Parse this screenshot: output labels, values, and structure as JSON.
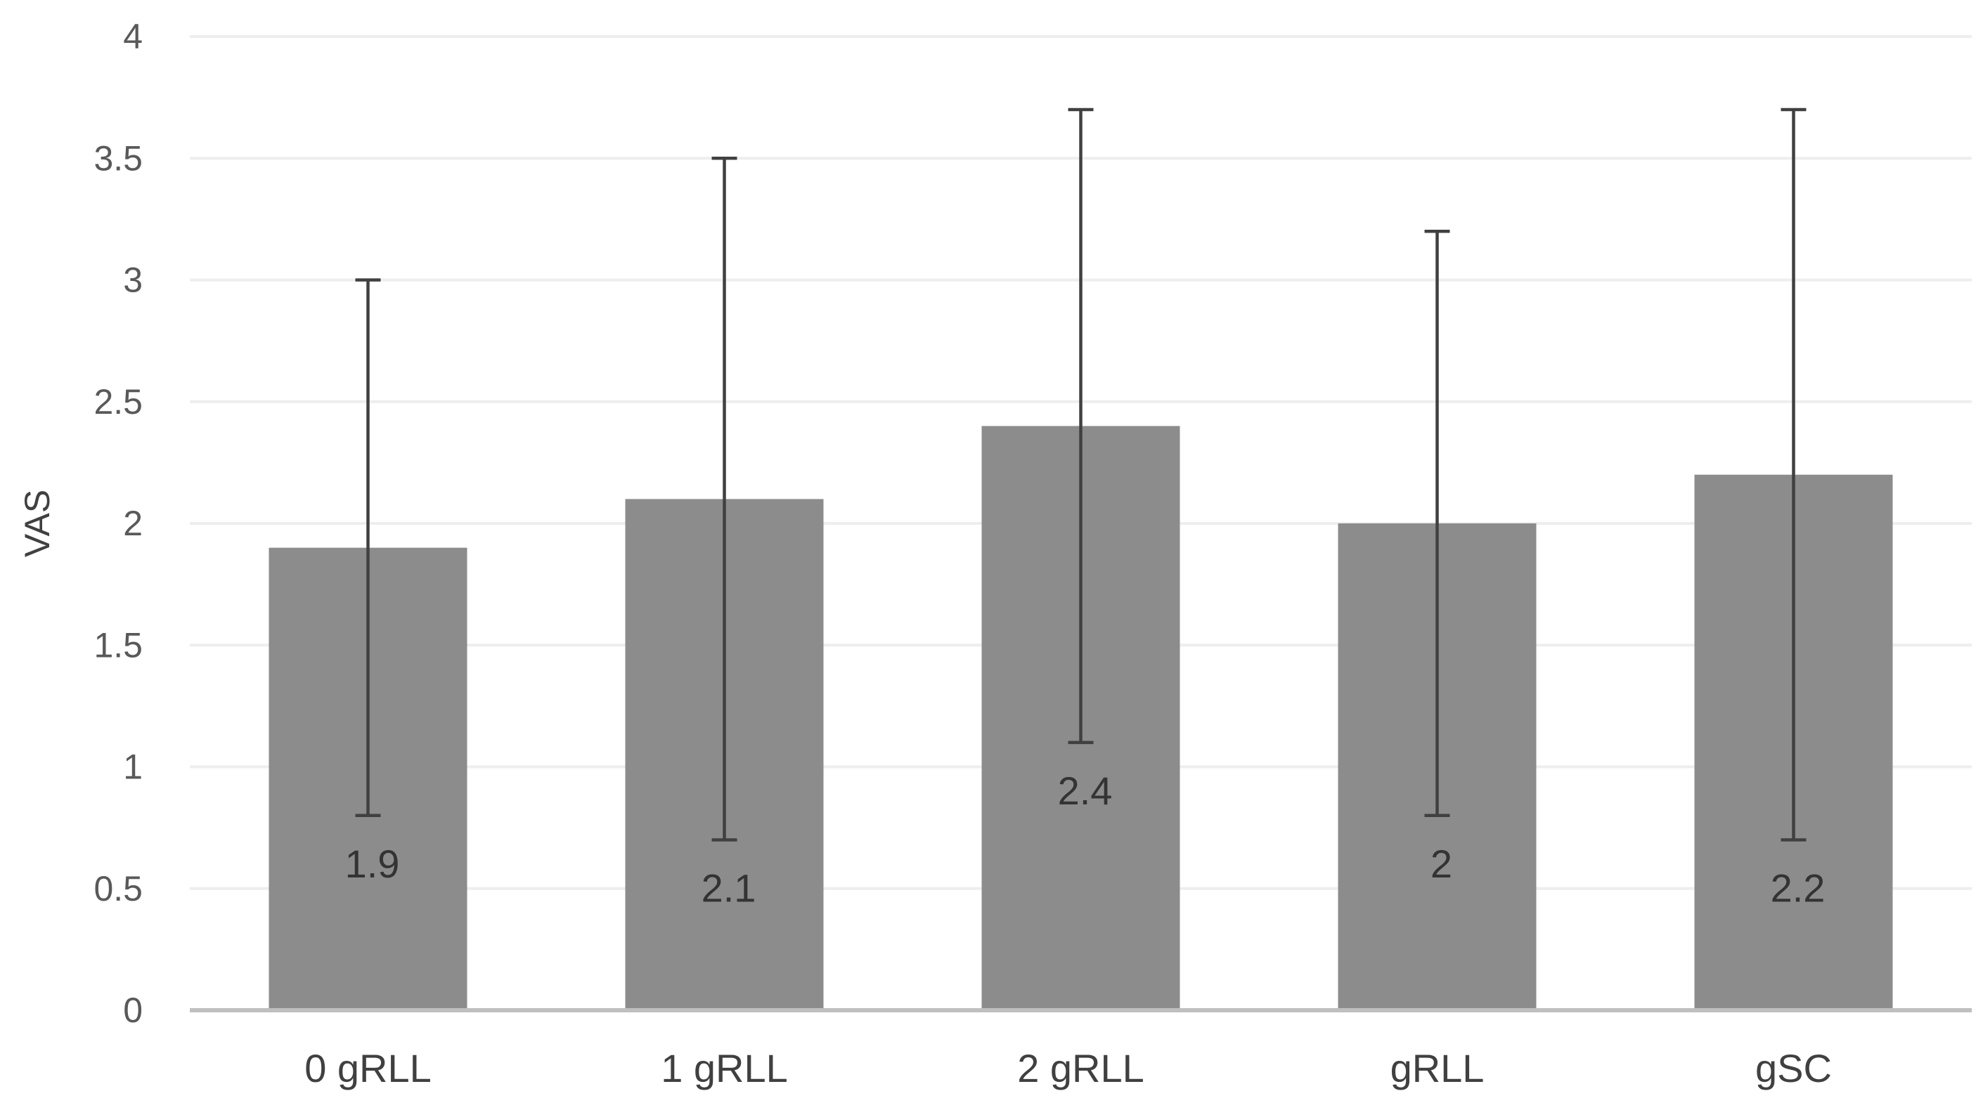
{
  "chart_data": {
    "type": "bar",
    "title": "",
    "xlabel": "",
    "ylabel": "VAS",
    "ylim": [
      0,
      4
    ],
    "yticks": [
      "0",
      "0.5",
      "1",
      "1.5",
      "2",
      "2.5",
      "3",
      "3.5",
      "4"
    ],
    "categories": [
      "0 gRLL",
      "1 gRLL",
      "2 gRLL",
      "gRLL",
      "gSC"
    ],
    "values": [
      1.9,
      2.1,
      2.4,
      2,
      2.2
    ],
    "data_labels": [
      "1.9",
      "2.1",
      "2.4",
      "2",
      "2.2"
    ],
    "error_low": [
      0.8,
      0.7,
      1.1,
      0.8,
      0.7
    ],
    "error_high": [
      3.0,
      3.5,
      3.7,
      3.2,
      3.7
    ],
    "grid": true,
    "legend": "none",
    "colors": {
      "bar": "#8c8c8c",
      "error_bar": "#404040",
      "grid": "#eeeeee",
      "axis": "#bfbfbf"
    }
  }
}
